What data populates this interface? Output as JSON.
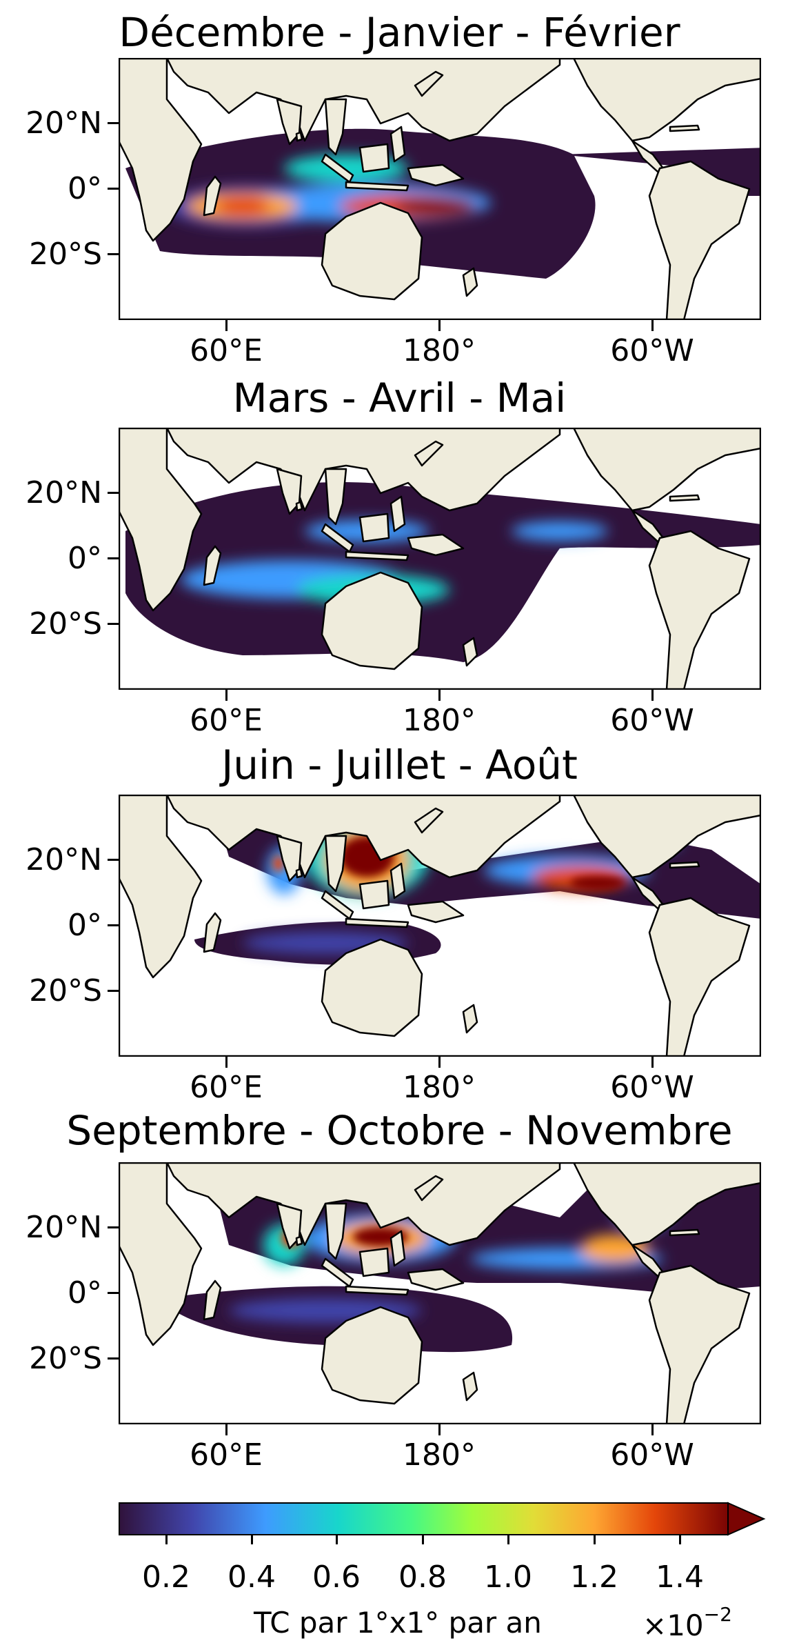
{
  "panels": [
    {
      "title": "Décembre - Janvier - Février"
    },
    {
      "title": "Mars - Avril - Mai"
    },
    {
      "title": "Juin - Juillet - Août"
    },
    {
      "title": "Septembre - Octobre - Novembre"
    }
  ],
  "axes": {
    "y_ticks": [
      "20°N",
      "0°",
      "20°S"
    ],
    "x_ticks": [
      "60°E",
      "180°",
      "60°W"
    ]
  },
  "colorbar": {
    "ticks": [
      "0.2",
      "0.4",
      "0.6",
      "0.8",
      "1.0",
      "1.2",
      "1.4"
    ],
    "label": "TC par 1°x1° par an",
    "multiplier": "×10",
    "exponent": "−2",
    "extend": "max",
    "colormap": "turbo"
  },
  "colors": {
    "land": "#efecdc",
    "coast": "#000000",
    "ocean_no_data": "#ffffff"
  }
}
